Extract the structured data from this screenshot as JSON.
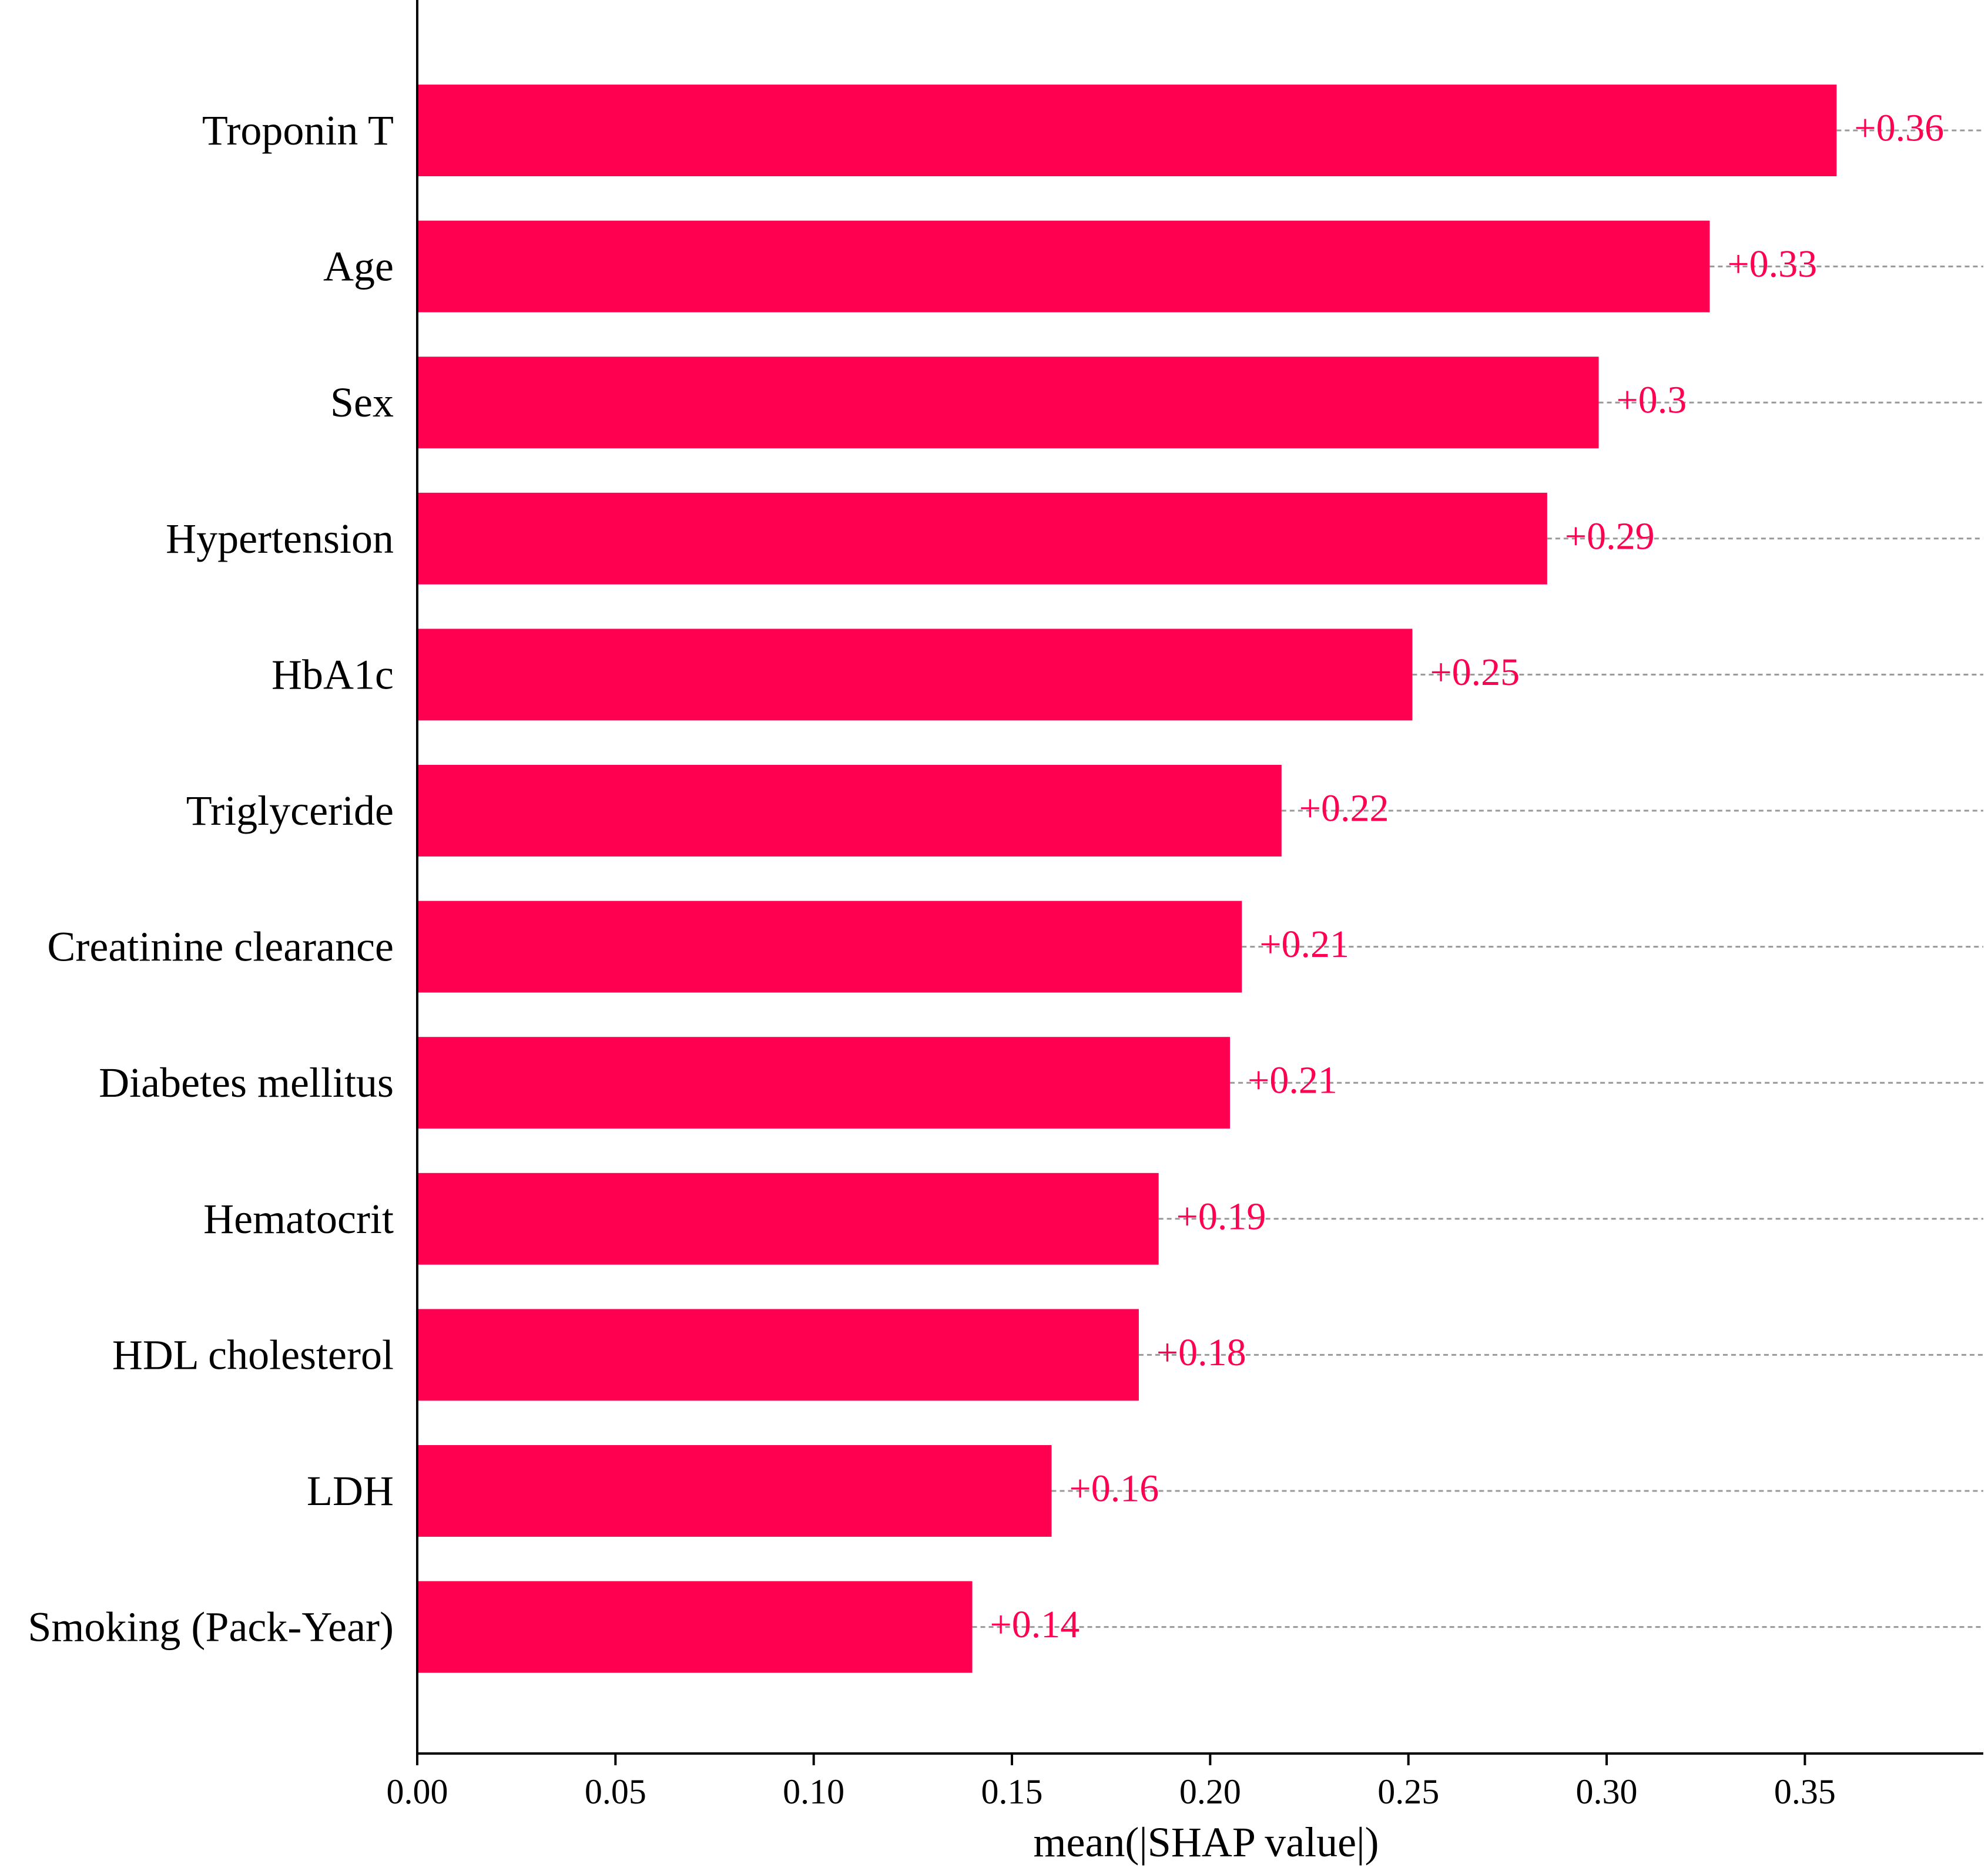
{
  "chart_data": {
    "type": "bar",
    "orientation": "horizontal",
    "title": "",
    "xlabel": "mean(|SHAP value|)",
    "ylabel": "",
    "xlim": [
      0,
      0.395
    ],
    "xticks": [
      0.0,
      0.05,
      0.1,
      0.15,
      0.2,
      0.25,
      0.3,
      0.35
    ],
    "xtick_labels": [
      "0.00",
      "0.05",
      "0.10",
      "0.15",
      "0.20",
      "0.25",
      "0.30",
      "0.35"
    ],
    "grid": false,
    "value_guides": "dashed",
    "bar_color": "#ff0051",
    "label_color": "#ff0051",
    "guide_color": "#999999",
    "categories": [
      "Troponin T",
      "Age",
      "Sex",
      "Hypertension",
      "HbA1c",
      "Triglyceride",
      "Creatinine clearance",
      "Diabetes mellitus",
      "Hematocrit",
      "HDL cholesterol",
      "LDH",
      "Smoking (Pack-Year)"
    ],
    "values": [
      0.358,
      0.326,
      0.298,
      0.285,
      0.251,
      0.218,
      0.208,
      0.205,
      0.187,
      0.182,
      0.16,
      0.14
    ],
    "data_labels": [
      "+0.36",
      "+0.33",
      "+0.3",
      "+0.29",
      "+0.25",
      "+0.22",
      "+0.21",
      "+0.21",
      "+0.19",
      "+0.18",
      "+0.16",
      "+0.14"
    ]
  }
}
